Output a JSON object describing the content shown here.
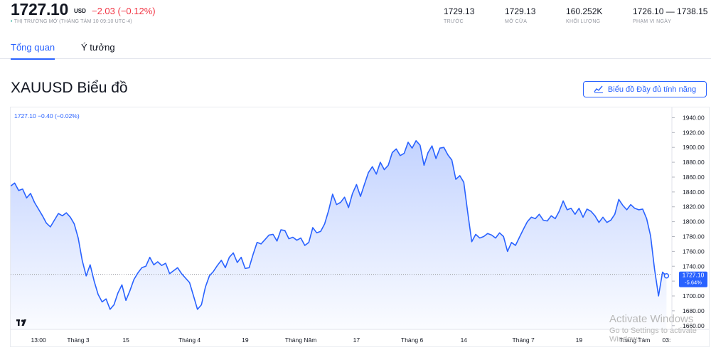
{
  "header": {
    "price": "1727.10",
    "currency": "USD",
    "change": "−2.03 (−0.12%)",
    "status_dot": "•",
    "status": "THỊ TRƯỜNG MỞ (THÁNG TÁM 10 09:10 UTC-4)",
    "stats": [
      {
        "value": "1729.13",
        "label": "TRƯỚC"
      },
      {
        "value": "1729.13",
        "label": "MỞ CỬA"
      },
      {
        "value": "160.252K",
        "label": "KHỐI LƯỢNG"
      },
      {
        "value": "1726.10 — 1738.15",
        "label": "PHẠM VI NGÀY"
      }
    ]
  },
  "tabs": [
    {
      "label": "Tổng quan",
      "active": true
    },
    {
      "label": "Ý tưởng",
      "active": false
    }
  ],
  "section_title": "XAUUSD Biểu đồ",
  "full_chart_button": "Biểu đồ Đầy đủ tính năng",
  "colors": {
    "accent": "#2962ff",
    "negative": "#f23645",
    "positive": "#22ab94",
    "line": "#2962ff"
  },
  "chart_data": {
    "type": "area",
    "legend_text": "1727.10  −0.40 (−0.02%)",
    "ylim": [
      1655,
      1950
    ],
    "y_ticks": [
      "1940.00",
      "1920.00",
      "1900.00",
      "1880.00",
      "1860.00",
      "1840.00",
      "1820.00",
      "1800.00",
      "1780.00",
      "1760.00",
      "1740.00",
      "1720.00",
      "1700.00",
      "1680.00",
      "1660.00"
    ],
    "x_labels": [
      {
        "label": "13:00",
        "t": 7
      },
      {
        "label": "Tháng 3",
        "t": 17
      },
      {
        "label": "15",
        "t": 29
      },
      {
        "label": "Tháng 4",
        "t": 45
      },
      {
        "label": "19",
        "t": 59
      },
      {
        "label": "Tháng Năm",
        "t": 73
      },
      {
        "label": "17",
        "t": 87
      },
      {
        "label": "Tháng 6",
        "t": 101
      },
      {
        "label": "14",
        "t": 114
      },
      {
        "label": "Tháng 7",
        "t": 129
      },
      {
        "label": "19",
        "t": 143
      },
      {
        "label": "Tháng Tám",
        "t": 157
      },
      {
        "label": "03:",
        "t": 165
      }
    ],
    "t_range": [
      0,
      166
    ],
    "last_price_label": "1727.10",
    "last_change_label": "-5.64%",
    "baseline": 1729.13,
    "series": [
      {
        "values": [
          [
            0,
            1848
          ],
          [
            1,
            1852
          ],
          [
            2,
            1842
          ],
          [
            3,
            1844
          ],
          [
            4,
            1832
          ],
          [
            5,
            1838
          ],
          [
            6,
            1826
          ],
          [
            7,
            1817
          ],
          [
            8,
            1808
          ],
          [
            9,
            1798
          ],
          [
            10,
            1793
          ],
          [
            11,
            1802
          ],
          [
            12,
            1811
          ],
          [
            13,
            1808
          ],
          [
            14,
            1812
          ],
          [
            15,
            1806
          ],
          [
            16,
            1797
          ],
          [
            17,
            1778
          ],
          [
            18,
            1748
          ],
          [
            19,
            1727
          ],
          [
            20,
            1742
          ],
          [
            21,
            1720
          ],
          [
            22,
            1702
          ],
          [
            23,
            1692
          ],
          [
            24,
            1696
          ],
          [
            25,
            1682
          ],
          [
            26,
            1688
          ],
          [
            27,
            1704
          ],
          [
            28,
            1715
          ],
          [
            29,
            1694
          ],
          [
            30,
            1707
          ],
          [
            31,
            1722
          ],
          [
            32,
            1731
          ],
          [
            33,
            1738
          ],
          [
            34,
            1740
          ],
          [
            35,
            1752
          ],
          [
            36,
            1742
          ],
          [
            37,
            1746
          ],
          [
            38,
            1741
          ],
          [
            39,
            1744
          ],
          [
            40,
            1730
          ],
          [
            41,
            1734
          ],
          [
            42,
            1738
          ],
          [
            43,
            1730
          ],
          [
            44,
            1724
          ],
          [
            45,
            1718
          ],
          [
            46,
            1700
          ],
          [
            47,
            1682
          ],
          [
            48,
            1688
          ],
          [
            49,
            1712
          ],
          [
            50,
            1727
          ],
          [
            51,
            1733
          ],
          [
            52,
            1741
          ],
          [
            53,
            1748
          ],
          [
            54,
            1738
          ],
          [
            55,
            1752
          ],
          [
            56,
            1758
          ],
          [
            57,
            1745
          ],
          [
            58,
            1752
          ],
          [
            59,
            1737
          ],
          [
            60,
            1738
          ],
          [
            61,
            1756
          ],
          [
            62,
            1772
          ],
          [
            63,
            1770
          ],
          [
            64,
            1776
          ],
          [
            65,
            1782
          ],
          [
            66,
            1783
          ],
          [
            67,
            1774
          ],
          [
            68,
            1789
          ],
          [
            69,
            1788
          ],
          [
            70,
            1777
          ],
          [
            71,
            1779
          ],
          [
            72,
            1775
          ],
          [
            73,
            1778
          ],
          [
            74,
            1768
          ],
          [
            75,
            1772
          ],
          [
            76,
            1792
          ],
          [
            77,
            1785
          ],
          [
            78,
            1787
          ],
          [
            79,
            1797
          ],
          [
            80,
            1815
          ],
          [
            81,
            1837
          ],
          [
            82,
            1823
          ],
          [
            83,
            1826
          ],
          [
            84,
            1833
          ],
          [
            85,
            1819
          ],
          [
            86,
            1838
          ],
          [
            87,
            1850
          ],
          [
            88,
            1834
          ],
          [
            89,
            1850
          ],
          [
            90,
            1866
          ],
          [
            91,
            1874
          ],
          [
            92,
            1864
          ],
          [
            93,
            1880
          ],
          [
            94,
            1870
          ],
          [
            95,
            1876
          ],
          [
            96,
            1893
          ],
          [
            97,
            1898
          ],
          [
            98,
            1889
          ],
          [
            99,
            1892
          ],
          [
            100,
            1907
          ],
          [
            101,
            1899
          ],
          [
            102,
            1909
          ],
          [
            103,
            1903
          ],
          [
            104,
            1876
          ],
          [
            105,
            1893
          ],
          [
            106,
            1902
          ],
          [
            107,
            1885
          ],
          [
            108,
            1899
          ],
          [
            109,
            1900
          ],
          [
            110,
            1890
          ],
          [
            111,
            1883
          ],
          [
            112,
            1857
          ],
          [
            113,
            1862
          ],
          [
            114,
            1853
          ],
          [
            115,
            1812
          ],
          [
            116,
            1773
          ],
          [
            117,
            1783
          ],
          [
            118,
            1778
          ],
          [
            119,
            1780
          ],
          [
            120,
            1784
          ],
          [
            121,
            1782
          ],
          [
            122,
            1778
          ],
          [
            123,
            1785
          ],
          [
            124,
            1780
          ],
          [
            125,
            1760
          ],
          [
            126,
            1772
          ],
          [
            127,
            1768
          ],
          [
            128,
            1779
          ],
          [
            129,
            1790
          ],
          [
            130,
            1800
          ],
          [
            131,
            1806
          ],
          [
            132,
            1804
          ],
          [
            133,
            1810
          ],
          [
            134,
            1802
          ],
          [
            135,
            1801
          ],
          [
            136,
            1808
          ],
          [
            137,
            1804
          ],
          [
            138,
            1814
          ],
          [
            139,
            1828
          ],
          [
            140,
            1816
          ],
          [
            141,
            1818
          ],
          [
            142,
            1810
          ],
          [
            143,
            1818
          ],
          [
            144,
            1806
          ],
          [
            145,
            1817
          ],
          [
            146,
            1814
          ],
          [
            147,
            1808
          ],
          [
            148,
            1799
          ],
          [
            149,
            1806
          ],
          [
            150,
            1799
          ],
          [
            151,
            1802
          ],
          [
            152,
            1810
          ],
          [
            153,
            1830
          ],
          [
            154,
            1822
          ],
          [
            155,
            1816
          ],
          [
            156,
            1823
          ],
          [
            157,
            1818
          ],
          [
            158,
            1816
          ],
          [
            159,
            1817
          ],
          [
            160,
            1804
          ],
          [
            161,
            1781
          ],
          [
            162,
            1736
          ],
          [
            163,
            1700
          ],
          [
            164,
            1732
          ],
          [
            165,
            1727
          ]
        ]
      }
    ]
  },
  "watermark": {
    "line1": "Activate Windows",
    "line2": "Go to Settings to activate Windows."
  }
}
